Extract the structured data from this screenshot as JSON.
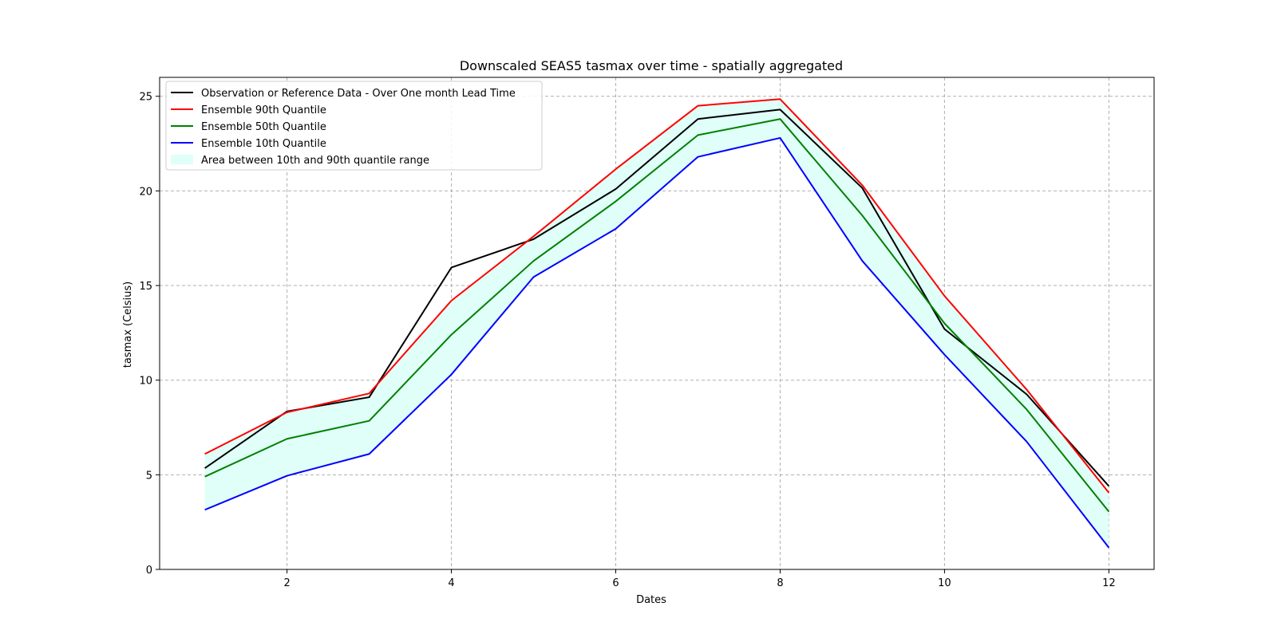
{
  "chart_data": {
    "type": "line",
    "title": "Downscaled SEAS5 tasmax over time - spatially aggregated",
    "xlabel": "Dates",
    "ylabel": "tasmax (Celsius)",
    "xlim": [
      0.45,
      12.55
    ],
    "ylim": [
      0,
      26
    ],
    "xticks": [
      2,
      4,
      6,
      8,
      10,
      12
    ],
    "yticks": [
      0,
      5,
      10,
      15,
      20,
      25
    ],
    "grid": true,
    "legend_position": "top-left",
    "x": [
      1,
      2,
      3,
      4,
      5,
      6,
      7,
      8,
      9,
      10,
      11,
      12
    ],
    "series": [
      {
        "name": "Observation or Reference Data - Over One month Lead Time",
        "color": "#000000",
        "values": [
          5.35,
          8.35,
          9.1,
          15.95,
          17.45,
          20.1,
          23.8,
          24.3,
          20.15,
          12.7,
          9.25,
          4.4
        ]
      },
      {
        "name": "Ensemble 90th Quantile",
        "color": "#ff0000",
        "values": [
          6.1,
          8.3,
          9.3,
          14.2,
          17.6,
          21.15,
          24.5,
          24.85,
          20.3,
          14.45,
          9.5,
          4.05
        ]
      },
      {
        "name": "Ensemble 50th Quantile",
        "color": "#008000",
        "values": [
          4.9,
          6.9,
          7.85,
          12.4,
          16.3,
          19.45,
          22.95,
          23.8,
          18.7,
          13.0,
          8.45,
          3.05
        ]
      },
      {
        "name": "Ensemble 10th Quantile",
        "color": "#0000ff",
        "values": [
          3.15,
          4.95,
          6.1,
          10.3,
          15.45,
          18.0,
          21.8,
          22.8,
          16.3,
          11.35,
          6.75,
          1.15
        ]
      }
    ],
    "band": {
      "name": "Area between 10th and 90th quantile range",
      "color": "#e0fff8",
      "lower_series": 3,
      "upper_series": 1
    }
  }
}
